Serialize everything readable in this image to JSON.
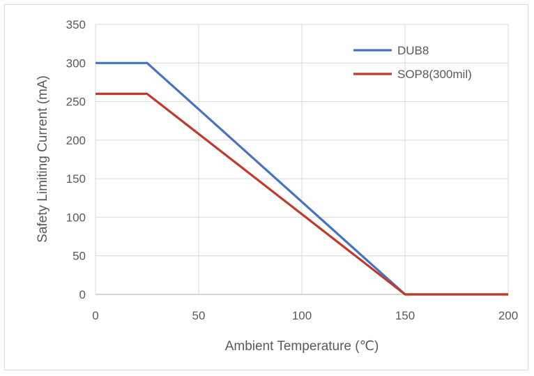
{
  "chart_data": {
    "type": "line",
    "title": "",
    "xlabel": "Ambient Temperature (℃)",
    "ylabel": "Safety Limiting Current (mA)",
    "xlim": [
      0,
      200
    ],
    "ylim": [
      0,
      350
    ],
    "xticks": [
      0,
      50,
      100,
      150,
      200
    ],
    "yticks": [
      0,
      50,
      100,
      150,
      200,
      250,
      300,
      350
    ],
    "grid": true,
    "legend_position": "top-right",
    "series": [
      {
        "name": "DUB8",
        "color": "#4472c4",
        "points": [
          [
            0,
            300
          ],
          [
            25,
            300
          ],
          [
            150,
            0
          ],
          [
            200,
            0
          ]
        ]
      },
      {
        "name": "SOP8(300mil)",
        "color": "#c0392b",
        "points": [
          [
            0,
            260
          ],
          [
            25,
            260
          ],
          [
            150,
            0
          ],
          [
            200,
            0
          ]
        ]
      }
    ]
  }
}
